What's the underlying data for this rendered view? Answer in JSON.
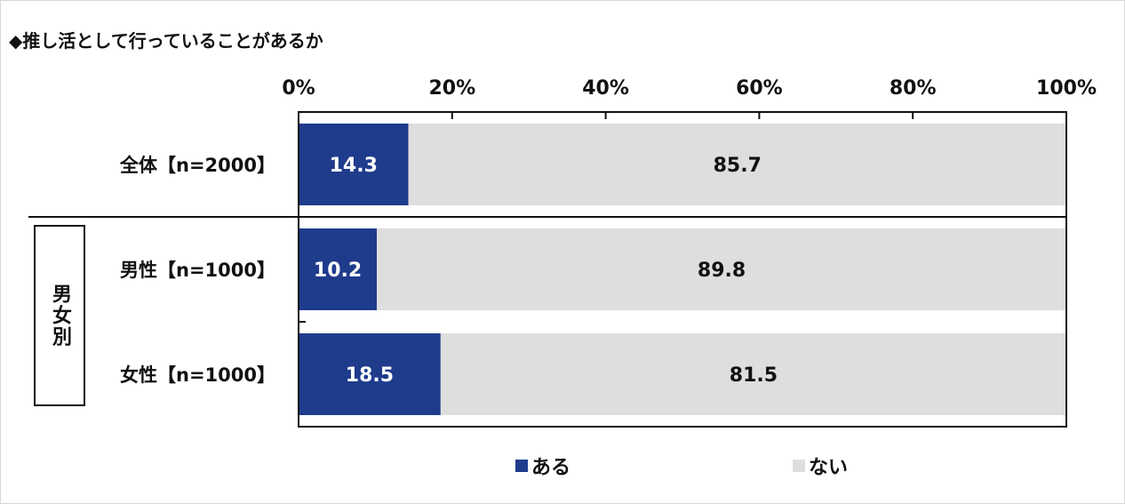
{
  "title": "◆推し活として行っていることがあるか",
  "group_label": "男女別",
  "colors": {
    "aru": "#1f3b8c",
    "nai": "#dedede",
    "axis": "#111111"
  },
  "chart_data": {
    "type": "bar",
    "orientation": "horizontal",
    "stacked": true,
    "percent": true,
    "categories": [
      "全体【n=2000】",
      "男性【n=1000】",
      "女性【n=1000】"
    ],
    "series": [
      {
        "name": "ある",
        "values": [
          14.3,
          10.2,
          18.5
        ]
      },
      {
        "name": "ない",
        "values": [
          85.7,
          89.8,
          81.5
        ]
      }
    ],
    "xlim": [
      0,
      100
    ],
    "xticks": [
      "0%",
      "20%",
      "40%",
      "60%",
      "80%",
      "100%"
    ],
    "xtick_values": [
      0,
      20,
      40,
      60,
      80,
      100
    ],
    "legend_position": "bottom",
    "grid": false
  }
}
